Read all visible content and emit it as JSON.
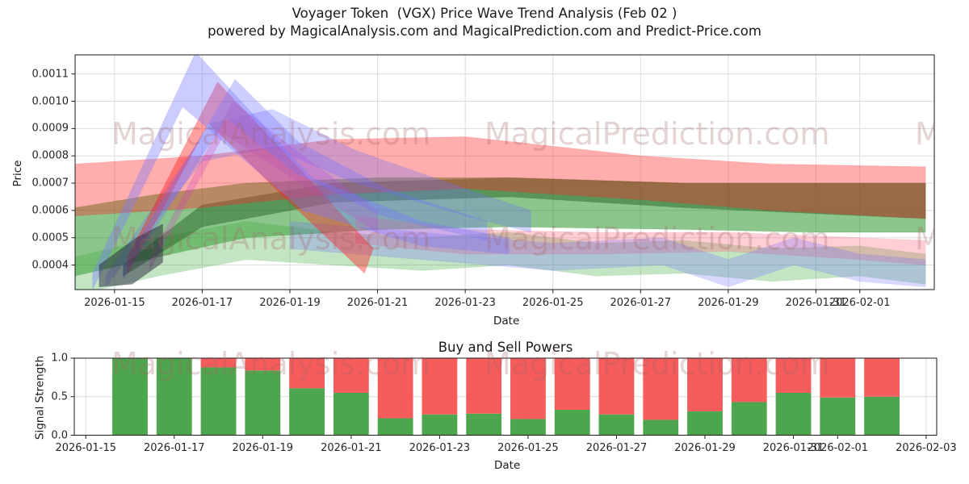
{
  "header": {
    "title_line1": "Voyager Token  (VGX) Price Wave Trend Analysis (Feb 02 )",
    "title_line2": "powered by MagicalAnalysis.com and MagicalPrediction.com and Predict-Price.com"
  },
  "watermarks": {
    "left_text": "MagicalAnalysis.com",
    "right_text": "MagicalPrediction.com",
    "partial_text": "M",
    "color": "#a26262"
  },
  "chart_data": [
    {
      "type": "area",
      "title": "",
      "xlabel": "Date",
      "ylabel": "Price",
      "x_unit": "days_since_2026-01-15",
      "xlim_days": [
        -0.9,
        18.7
      ],
      "ylim": [
        0.00031,
        0.00117
      ],
      "grid": true,
      "xticks": [
        {
          "day": 0,
          "label": "2026-01-15"
        },
        {
          "day": 2,
          "label": "2026-01-17"
        },
        {
          "day": 4,
          "label": "2026-01-19"
        },
        {
          "day": 6,
          "label": "2026-01-21"
        },
        {
          "day": 8,
          "label": "2026-01-23"
        },
        {
          "day": 10,
          "label": "2026-01-25"
        },
        {
          "day": 12,
          "label": "2026-01-27"
        },
        {
          "day": 14,
          "label": "2026-01-29"
        },
        {
          "day": 16,
          "label": "2026-01-31"
        },
        {
          "day": 17,
          "label": "2026-02-01"
        }
      ],
      "yticks": [
        {
          "v": 0.0004,
          "label": "0.0004"
        },
        {
          "v": 0.0005,
          "label": "0.0005"
        },
        {
          "v": 0.0006,
          "label": "0.0006"
        },
        {
          "v": 0.0007,
          "label": "0.0007"
        },
        {
          "v": 0.0008,
          "label": "0.0008"
        },
        {
          "v": 0.0009,
          "label": "0.0009"
        },
        {
          "v": 0.001,
          "label": "0.0010"
        },
        {
          "v": 0.0011,
          "label": "0.0011"
        }
      ],
      "bands": [
        {
          "name": "green-wide-band",
          "color": "rgba(0,128,0,0.45)",
          "upper": [
            [
              -0.9,
              0.00061
            ],
            [
              1,
              0.00066
            ],
            [
              3,
              0.0007
            ],
            [
              6,
              0.00072
            ],
            [
              9,
              0.00072
            ],
            [
              13,
              0.0007
            ],
            [
              16,
              0.0007
            ],
            [
              18.5,
              0.0007
            ]
          ],
          "lower": [
            [
              -0.9,
              0.00036
            ],
            [
              1,
              0.00043
            ],
            [
              3,
              0.0005
            ],
            [
              6,
              0.00053
            ],
            [
              9,
              0.00054
            ],
            [
              13,
              0.00053
            ],
            [
              16,
              0.00052
            ],
            [
              18.5,
              0.00052
            ]
          ]
        },
        {
          "name": "light-green-low-band",
          "color": "rgba(60,170,60,0.30)",
          "upper": [
            [
              -0.9,
              0.00043
            ],
            [
              1,
              0.0005
            ],
            [
              3,
              0.00056
            ],
            [
              5,
              0.00052
            ],
            [
              7,
              0.0005
            ],
            [
              9,
              0.00052
            ],
            [
              11,
              0.00048
            ],
            [
              13,
              0.00049
            ],
            [
              15,
              0.00046
            ],
            [
              17,
              0.00047
            ],
            [
              18.5,
              0.00044
            ]
          ],
          "lower": [
            [
              -0.9,
              0.00029
            ],
            [
              1,
              0.00036
            ],
            [
              3,
              0.00042
            ],
            [
              5,
              0.0004
            ],
            [
              7,
              0.00038
            ],
            [
              9,
              0.0004
            ],
            [
              11,
              0.00036
            ],
            [
              13,
              0.00037
            ],
            [
              15,
              0.00034
            ],
            [
              17,
              0.00036
            ],
            [
              18.5,
              0.00033
            ]
          ]
        },
        {
          "name": "dark-green-core-band",
          "color": "rgba(20,80,20,0.42)",
          "upper": [
            [
              0.2,
              0.0004
            ],
            [
              2,
              0.00062
            ],
            [
              5,
              0.0007
            ],
            [
              9,
              0.00072
            ],
            [
              13,
              0.0007
            ],
            [
              18.5,
              0.0007
            ]
          ],
          "lower": [
            [
              0.2,
              0.00036
            ],
            [
              2,
              0.00054
            ],
            [
              5,
              0.00063
            ],
            [
              9,
              0.00065
            ],
            [
              13,
              0.00061
            ],
            [
              18.5,
              0.00057
            ]
          ]
        },
        {
          "name": "red-wide-band",
          "color": "rgba(255,40,40,0.38)",
          "upper": [
            [
              -0.9,
              0.00077
            ],
            [
              2,
              0.0008
            ],
            [
              5,
              0.00086
            ],
            [
              8,
              0.00087
            ],
            [
              12,
              0.0008
            ],
            [
              15,
              0.00077
            ],
            [
              18.5,
              0.00076
            ]
          ],
          "lower": [
            [
              -0.9,
              0.00058
            ],
            [
              2,
              0.00061
            ],
            [
              5,
              0.00066
            ],
            [
              8,
              0.00068
            ],
            [
              12,
              0.00064
            ],
            [
              15,
              0.0006
            ],
            [
              18.5,
              0.00057
            ]
          ]
        },
        {
          "name": "pink-bottom-right-band",
          "color": "rgba(255,80,110,0.28)",
          "upper": [
            [
              5.5,
              0.00058
            ],
            [
              8,
              0.00053
            ],
            [
              11,
              0.00052
            ],
            [
              14,
              0.00052
            ],
            [
              17,
              0.0005
            ],
            [
              18.5,
              0.00049
            ]
          ],
          "lower": [
            [
              5.5,
              0.00048
            ],
            [
              8,
              0.00044
            ],
            [
              11,
              0.00044
            ],
            [
              14,
              0.00045
            ],
            [
              17,
              0.00042
            ],
            [
              18.5,
              0.0004
            ]
          ]
        },
        {
          "name": "blue-bottom-right-band",
          "color": "rgba(100,100,255,0.25)",
          "upper": [
            [
              4,
              0.00056
            ],
            [
              7,
              0.00052
            ],
            [
              10,
              0.00048
            ],
            [
              12.5,
              0.0005
            ],
            [
              14,
              0.00042
            ],
            [
              15.5,
              0.0005
            ],
            [
              17,
              0.00044
            ],
            [
              18.5,
              0.00042
            ]
          ],
          "lower": [
            [
              4,
              0.00046
            ],
            [
              7,
              0.00042
            ],
            [
              10,
              0.00038
            ],
            [
              12.5,
              0.0004
            ],
            [
              14,
              0.00032
            ],
            [
              15.5,
              0.0004
            ],
            [
              17,
              0.00034
            ],
            [
              18.5,
              0.00032
            ]
          ]
        },
        {
          "name": "blue-broad-spike-band",
          "color": "rgba(110,110,255,0.30)",
          "upper": [
            [
              -0.2,
              0.00036
            ],
            [
              2.2,
              0.00092
            ],
            [
              3.6,
              0.00097
            ],
            [
              5.5,
              0.00082
            ],
            [
              8,
              0.00068
            ],
            [
              9.5,
              0.0006
            ]
          ],
          "lower": [
            [
              -0.2,
              0.00032
            ],
            [
              2.0,
              0.00078
            ],
            [
              3.6,
              0.00083
            ],
            [
              5.5,
              0.0007
            ],
            [
              8,
              0.00058
            ],
            [
              9.5,
              0.00052
            ]
          ]
        },
        {
          "name": "magenta-spike-band",
          "color": "rgba(205,60,190,0.28)",
          "upper": [
            [
              0.8,
              0.00042
            ],
            [
              2.7,
              0.001
            ],
            [
              4.3,
              0.0008
            ],
            [
              6,
              0.0006
            ]
          ],
          "lower": [
            [
              0.8,
              0.00038
            ],
            [
              2.5,
              0.00088
            ],
            [
              4.2,
              0.0007
            ],
            [
              6,
              0.00052
            ]
          ]
        },
        {
          "name": "red-spike-band",
          "color": "rgba(255,30,30,0.42)",
          "upper": [
            [
              0.3,
              0.00043
            ],
            [
              2.35,
              0.00107
            ],
            [
              4,
              0.00079
            ],
            [
              5.9,
              0.00046
            ]
          ],
          "lower": [
            [
              0.3,
              0.00037
            ],
            [
              2.15,
              0.00092
            ],
            [
              3.8,
              0.00066
            ],
            [
              5.7,
              0.00037
            ]
          ]
        },
        {
          "name": "blue-second-spike-band",
          "color": "rgba(110,110,255,0.33)",
          "upper": [
            [
              0.2,
              0.0004
            ],
            [
              2.75,
              0.00108
            ],
            [
              4.2,
              0.00085
            ],
            [
              6.2,
              0.00068
            ],
            [
              8.5,
              0.00056
            ]
          ],
          "lower": [
            [
              0.2,
              0.00035
            ],
            [
              2.55,
              0.00094
            ],
            [
              4.1,
              0.00074
            ],
            [
              6.1,
              0.00058
            ],
            [
              8.5,
              0.00049
            ]
          ]
        },
        {
          "name": "tall-blue-spike-band",
          "color": "rgba(120,120,255,0.38)",
          "upper": [
            [
              -0.5,
              0.00037
            ],
            [
              1.85,
              0.00118
            ],
            [
              4.5,
              0.00072
            ],
            [
              7,
              0.00056
            ],
            [
              9,
              0.0005
            ]
          ],
          "lower": [
            [
              -0.5,
              0.00031
            ],
            [
              1.55,
              0.00098
            ],
            [
              4.3,
              0.0006
            ],
            [
              7,
              0.00047
            ],
            [
              9,
              0.00044
            ]
          ]
        },
        {
          "name": "dark-pinch-blob",
          "color": "rgba(35,35,60,0.50)",
          "upper": [
            [
              -0.35,
              0.0004
            ],
            [
              0.5,
              0.0005
            ],
            [
              1.1,
              0.00055
            ]
          ],
          "lower": [
            [
              -0.35,
              0.00032
            ],
            [
              0.4,
              0.00033
            ],
            [
              1.1,
              0.00041
            ]
          ]
        }
      ]
    },
    {
      "type": "bar",
      "title": "Buy and Sell Powers",
      "xlabel": "Date",
      "ylabel": "Signal Strength",
      "x_unit": "days_since_2026-01-15",
      "xlim_days": [
        -0.26,
        19.24
      ],
      "ylim": [
        0,
        1
      ],
      "bar_width_days": 0.8,
      "colors": {
        "buy": "#4da64d",
        "sell": "#f65c5c"
      },
      "legend": null,
      "xticks": [
        {
          "day": 0,
          "label": "2026-01-15"
        },
        {
          "day": 2,
          "label": "2026-01-17"
        },
        {
          "day": 4,
          "label": "2026-01-19"
        },
        {
          "day": 6,
          "label": "2026-01-21"
        },
        {
          "day": 8,
          "label": "2026-01-23"
        },
        {
          "day": 10,
          "label": "2026-01-25"
        },
        {
          "day": 12,
          "label": "2026-01-27"
        },
        {
          "day": 14,
          "label": "2026-01-29"
        },
        {
          "day": 16,
          "label": "2026-01-31"
        },
        {
          "day": 17,
          "label": "2026-02-01"
        },
        {
          "day": 19,
          "label": "2026-02-03"
        }
      ],
      "yticks": [
        {
          "v": 0.0,
          "label": "0.0"
        },
        {
          "v": 0.5,
          "label": "0.5"
        },
        {
          "v": 1.0,
          "label": "1.0"
        }
      ],
      "bars": [
        {
          "date": "2026-01-16",
          "day": 1,
          "buy": 1.0,
          "sell": 0.0
        },
        {
          "date": "2026-01-17",
          "day": 2,
          "buy": 1.0,
          "sell": 0.0
        },
        {
          "date": "2026-01-18",
          "day": 3,
          "buy": 0.88,
          "sell": 0.12
        },
        {
          "date": "2026-01-19",
          "day": 4,
          "buy": 0.84,
          "sell": 0.16
        },
        {
          "date": "2026-01-20",
          "day": 5,
          "buy": 0.61,
          "sell": 0.39
        },
        {
          "date": "2026-01-21",
          "day": 6,
          "buy": 0.55,
          "sell": 0.45
        },
        {
          "date": "2026-01-22",
          "day": 7,
          "buy": 0.22,
          "sell": 0.78
        },
        {
          "date": "2026-01-23",
          "day": 8,
          "buy": 0.27,
          "sell": 0.73
        },
        {
          "date": "2026-01-24",
          "day": 9,
          "buy": 0.28,
          "sell": 0.72
        },
        {
          "date": "2026-01-25",
          "day": 10,
          "buy": 0.21,
          "sell": 0.79
        },
        {
          "date": "2026-01-26",
          "day": 11,
          "buy": 0.33,
          "sell": 0.67
        },
        {
          "date": "2026-01-27",
          "day": 12,
          "buy": 0.27,
          "sell": 0.73
        },
        {
          "date": "2026-01-28",
          "day": 13,
          "buy": 0.2,
          "sell": 0.8
        },
        {
          "date": "2026-01-29",
          "day": 14,
          "buy": 0.31,
          "sell": 0.69
        },
        {
          "date": "2026-01-30",
          "day": 15,
          "buy": 0.43,
          "sell": 0.57
        },
        {
          "date": "2026-01-31",
          "day": 16,
          "buy": 0.55,
          "sell": 0.45
        },
        {
          "date": "2026-02-01",
          "day": 17,
          "buy": 0.49,
          "sell": 0.51
        },
        {
          "date": "2026-02-02",
          "day": 18,
          "buy": 0.5,
          "sell": 0.5
        }
      ]
    }
  ]
}
